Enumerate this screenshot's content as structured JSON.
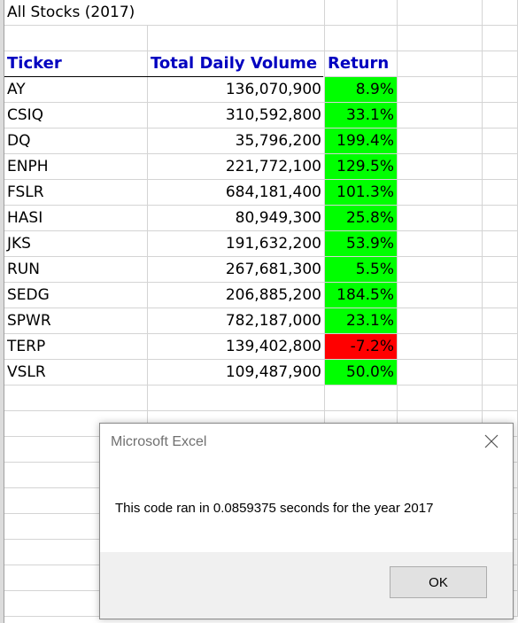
{
  "sheet": {
    "title": "All Stocks (2017)",
    "headers": {
      "ticker": "Ticker",
      "volume": "Total Daily Volume",
      "return": "Return"
    },
    "rows": [
      {
        "ticker": "AY",
        "volume": "136,070,900",
        "return": "8.9%",
        "status": "positive"
      },
      {
        "ticker": "CSIQ",
        "volume": "310,592,800",
        "return": "33.1%",
        "status": "positive"
      },
      {
        "ticker": "DQ",
        "volume": "35,796,200",
        "return": "199.4%",
        "status": "positive"
      },
      {
        "ticker": "ENPH",
        "volume": "221,772,100",
        "return": "129.5%",
        "status": "positive"
      },
      {
        "ticker": "FSLR",
        "volume": "684,181,400",
        "return": "101.3%",
        "status": "positive"
      },
      {
        "ticker": "HASI",
        "volume": "80,949,300",
        "return": "25.8%",
        "status": "positive"
      },
      {
        "ticker": "JKS",
        "volume": "191,632,200",
        "return": "53.9%",
        "status": "positive"
      },
      {
        "ticker": "RUN",
        "volume": "267,681,300",
        "return": "5.5%",
        "status": "positive"
      },
      {
        "ticker": "SEDG",
        "volume": "206,885,200",
        "return": "184.5%",
        "status": "positive"
      },
      {
        "ticker": "SPWR",
        "volume": "782,187,000",
        "return": "23.1%",
        "status": "positive"
      },
      {
        "ticker": "TERP",
        "volume": "139,402,800",
        "return": "-7.2%",
        "status": "negative"
      },
      {
        "ticker": "VSLR",
        "volume": "109,487,900",
        "return": "50.0%",
        "status": "positive"
      }
    ]
  },
  "colors": {
    "positive": "#00ff00",
    "negative": "#ff0000",
    "header_text": "#0000c0"
  },
  "dialog": {
    "title": "Microsoft Excel",
    "message": "This code ran in 0.0859375 seconds for the year 2017",
    "ok_label": "OK",
    "close_icon": "close-icon"
  }
}
